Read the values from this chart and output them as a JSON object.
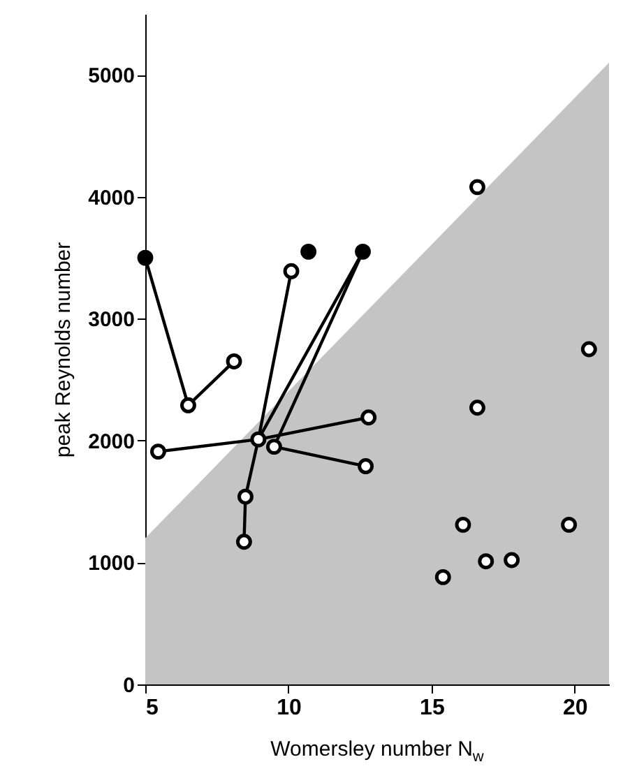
{
  "chart_data": {
    "type": "scatter",
    "xlabel": "Womersley number N$_{w}$",
    "ylabel": "peak Reynolds number",
    "xlim": [
      5,
      21.2
    ],
    "ylim": [
      0,
      5500
    ],
    "xticks": [
      5,
      10,
      15,
      20
    ],
    "yticks": [
      0,
      1000,
      2000,
      3000,
      4000,
      5000
    ],
    "grid": false,
    "series": [
      {
        "type": "area",
        "color": "#c4c4c4",
        "x": [
          5,
          21.2
        ],
        "values": [
          1200,
          5100
        ]
      },
      {
        "type": "line",
        "color": "#000000",
        "x": [
          5,
          6.5,
          8.1
        ],
        "values": [
          3500,
          2290,
          2650
        ]
      },
      {
        "type": "line",
        "color": "#000000",
        "x": [
          5.45,
          8.95
        ],
        "values": [
          1910,
          2010
        ]
      },
      {
        "type": "line",
        "color": "#000000",
        "x": [
          8.45,
          8.5,
          8.95,
          10.1
        ],
        "values": [
          1170,
          1540,
          2010,
          3390
        ]
      },
      {
        "type": "line",
        "color": "#000000",
        "x": [
          8.95,
          12.6
        ],
        "values": [
          2010,
          3550
        ]
      },
      {
        "type": "line",
        "color": "#000000",
        "x": [
          9.5,
          12.6
        ],
        "values": [
          1950,
          3550
        ]
      },
      {
        "type": "line",
        "color": "#000000",
        "x": [
          8.95,
          12.8
        ],
        "values": [
          2010,
          2190
        ]
      },
      {
        "type": "line",
        "color": "#000000",
        "x": [
          9.5,
          12.7
        ],
        "values": [
          1950,
          1790
        ]
      },
      {
        "color": "#ffffff",
        "marker": "circle",
        "x": [
          6.5,
          8.1,
          5.45,
          8.95,
          9.5,
          10.1,
          12.8,
          12.7,
          8.5,
          8.45,
          16.6,
          20.5,
          16.6,
          16.1,
          19.8,
          16.9,
          17.8,
          15.4
        ],
        "values": [
          2290,
          2650,
          1910,
          2010,
          1950,
          3390,
          2190,
          1790,
          1540,
          1170,
          4080,
          2750,
          2270,
          1310,
          1310,
          1010,
          1020,
          880
        ]
      },
      {
        "color": "#000000",
        "marker": "circle",
        "x": [
          5,
          10.7,
          12.6
        ],
        "values": [
          3500,
          3550,
          3550
        ]
      }
    ]
  }
}
